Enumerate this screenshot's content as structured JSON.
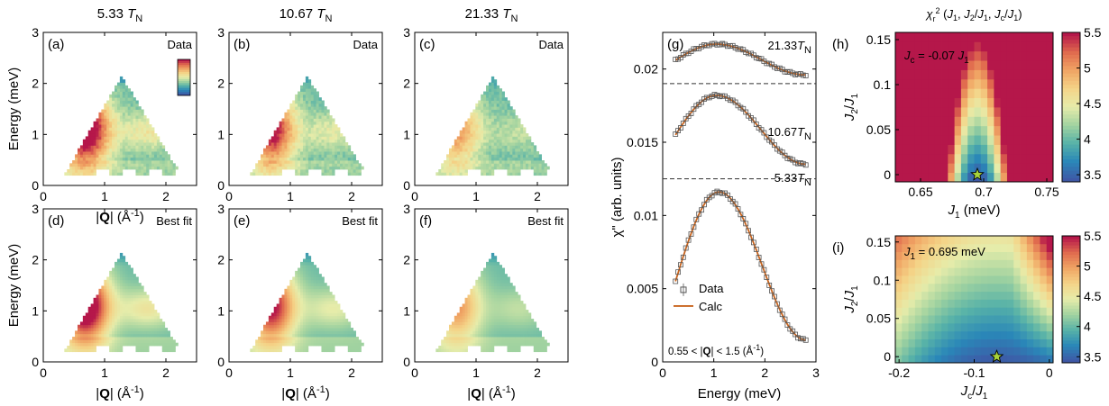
{
  "colors": {
    "colormap": [
      "#3e58a6",
      "#2a87b8",
      "#57b2a8",
      "#a2d3a0",
      "#e6ecaa",
      "#f4d488",
      "#f0a564",
      "#e06a4e",
      "#b5174a"
    ],
    "calc_line": "#c8641e",
    "data_marker": "#555555"
  },
  "chart_data": [
    {
      "type": "heatmap",
      "id": "a",
      "panel_label": "(a)",
      "column_title": "5.33",
      "column_title_sub": "N",
      "tag": "Data",
      "xlabel": "|Q| (Å-1)",
      "ylabel": "Energy (meV)",
      "xlim": [
        0,
        2.5
      ],
      "ylim": [
        0,
        3
      ],
      "x_ticks": [
        "0",
        "1",
        "2"
      ],
      "y_ticks": [
        "0",
        "1",
        "2",
        "3"
      ],
      "intensity_peak": 0.9,
      "has_colorbar_inset": true,
      "grid": false
    },
    {
      "type": "heatmap",
      "id": "b",
      "panel_label": "(b)",
      "column_title": "10.67",
      "column_title_sub": "N",
      "tag": "Data",
      "xlabel": "",
      "ylabel": "",
      "xlim": [
        0,
        2.5
      ],
      "ylim": [
        0,
        3
      ],
      "x_ticks": [
        "0",
        "1",
        "2"
      ],
      "y_ticks": [
        "0",
        "1",
        "2",
        "3"
      ],
      "intensity_peak": 0.75,
      "grid": false
    },
    {
      "type": "heatmap",
      "id": "c",
      "panel_label": "(c)",
      "column_title": "21.33",
      "column_title_sub": "N",
      "tag": "Data",
      "xlabel": "",
      "ylabel": "",
      "xlim": [
        0,
        2.5
      ],
      "ylim": [
        0,
        3
      ],
      "x_ticks": [
        "0",
        "1",
        "2"
      ],
      "y_ticks": [
        "0",
        "1",
        "2",
        "3"
      ],
      "intensity_peak": 0.5,
      "grid": false
    },
    {
      "type": "heatmap",
      "id": "d",
      "panel_label": "(d)",
      "tag": "Best fit",
      "xlabel": "|Q| (Å-1)",
      "ylabel": "Energy (meV)",
      "xlim": [
        0,
        2.5
      ],
      "ylim": [
        0,
        3
      ],
      "x_ticks": [
        "0",
        "1",
        "2"
      ],
      "y_ticks": [
        "0",
        "1",
        "2",
        "3"
      ],
      "intensity_peak": 0.9,
      "grid": false
    },
    {
      "type": "heatmap",
      "id": "e",
      "panel_label": "(e)",
      "tag": "Best fit",
      "xlabel": "|Q| (Å-1)",
      "ylabel": "",
      "xlim": [
        0,
        2.5
      ],
      "ylim": [
        0,
        3
      ],
      "x_ticks": [
        "0",
        "1",
        "2"
      ],
      "y_ticks": [
        "0",
        "1",
        "2",
        "3"
      ],
      "intensity_peak": 0.75,
      "grid": false
    },
    {
      "type": "heatmap",
      "id": "f",
      "panel_label": "(f)",
      "tag": "Best fit",
      "xlabel": "|Q| (Å-1)",
      "ylabel": "",
      "xlim": [
        0,
        2.5
      ],
      "ylim": [
        0,
        3
      ],
      "x_ticks": [
        "0",
        "1",
        "2"
      ],
      "y_ticks": [
        "0",
        "1",
        "2",
        "3"
      ],
      "intensity_peak": 0.5,
      "grid": false
    },
    {
      "type": "scatter",
      "id": "g",
      "panel_label": "(g)",
      "xlabel": "Energy (meV)",
      "ylabel": "χ\" (arb. units)",
      "xlim": [
        0,
        3
      ],
      "ylim": [
        0,
        0.0225
      ],
      "x_ticks": [
        "0",
        "1",
        "2",
        "3"
      ],
      "y_ticks": [
        "0",
        "0.005",
        "0.01",
        "0.015",
        "0.02"
      ],
      "y_tick_values": [
        0,
        0.005,
        0.01,
        0.015,
        0.02
      ],
      "dashed_lines_y": [
        0.0125,
        0.019
      ],
      "curve_labels": [
        {
          "text": "21.33",
          "sub": "N"
        },
        {
          "text": "10.67",
          "sub": "N"
        },
        {
          "text": "5.33",
          "sub": "N"
        }
      ],
      "legend": {
        "position": "lower-left",
        "data_label": "Data",
        "calc_label": "Calc"
      },
      "annotation": "0.55 < |Q| < 1.5  (Å-1)",
      "curves": [
        {
          "energy_min": 0.25,
          "energy_max": 2.8,
          "peak_energy": 1.1,
          "peak_value": 0.0116,
          "start_value": 0.0055,
          "end_value": 0.0015
        },
        {
          "energy_min": 0.25,
          "energy_max": 2.8,
          "peak_energy": 1.05,
          "peak_value": 0.0182,
          "start_value": 0.0155,
          "end_value": 0.0135
        },
        {
          "energy_min": 0.25,
          "energy_max": 2.8,
          "peak_energy": 1.05,
          "peak_value": 0.0217,
          "start_value": 0.0206,
          "end_value": 0.0196
        }
      ],
      "grid": false
    },
    {
      "type": "heatmap",
      "id": "h",
      "panel_label": "(h)",
      "title": "χr2 (J1, J2/J1, Jc/J1)",
      "xlabel": "J1 (meV)",
      "ylabel": "J2/J1",
      "xlim": [
        0.63,
        0.755
      ],
      "ylim": [
        -0.008,
        0.158
      ],
      "x_ticks": [
        "0.65",
        "0.7",
        "0.75"
      ],
      "x_tick_values": [
        0.65,
        0.7,
        0.75
      ],
      "y_ticks": [
        "0",
        "0.05",
        "0.1",
        "0.15"
      ],
      "y_tick_values": [
        0,
        0.05,
        0.1,
        0.15
      ],
      "annotation": "Jc = -0.07 J1",
      "best_fit": {
        "x": 0.695,
        "y": 0
      },
      "colorbar": {
        "min": 3.4,
        "max": 5.5,
        "ticks": [
          "3.5",
          "4",
          "4.5",
          "5",
          "5.5"
        ],
        "tick_values": [
          3.5,
          4,
          4.5,
          5,
          5.5
        ]
      },
      "grid": false
    },
    {
      "type": "heatmap",
      "id": "i",
      "panel_label": "(i)",
      "xlabel": "Jc/J1",
      "ylabel": "J2/J1",
      "xlim": [
        -0.205,
        0.005
      ],
      "ylim": [
        -0.008,
        0.158
      ],
      "x_ticks": [
        "-0.2",
        "-0.1",
        "0"
      ],
      "x_tick_values": [
        -0.2,
        -0.1,
        0
      ],
      "y_ticks": [
        "0",
        "0.05",
        "0.1",
        "0.15"
      ],
      "y_tick_values": [
        0,
        0.05,
        0.1,
        0.15
      ],
      "annotation": "J1 = 0.695 meV",
      "best_fit": {
        "x": -0.07,
        "y": 0
      },
      "colorbar": {
        "min": 3.4,
        "max": 5.5,
        "ticks": [
          "3.5",
          "4",
          "4.5",
          "5",
          "5.5"
        ],
        "tick_values": [
          3.5,
          4,
          4.5,
          5,
          5.5
        ]
      },
      "grid": false
    }
  ]
}
